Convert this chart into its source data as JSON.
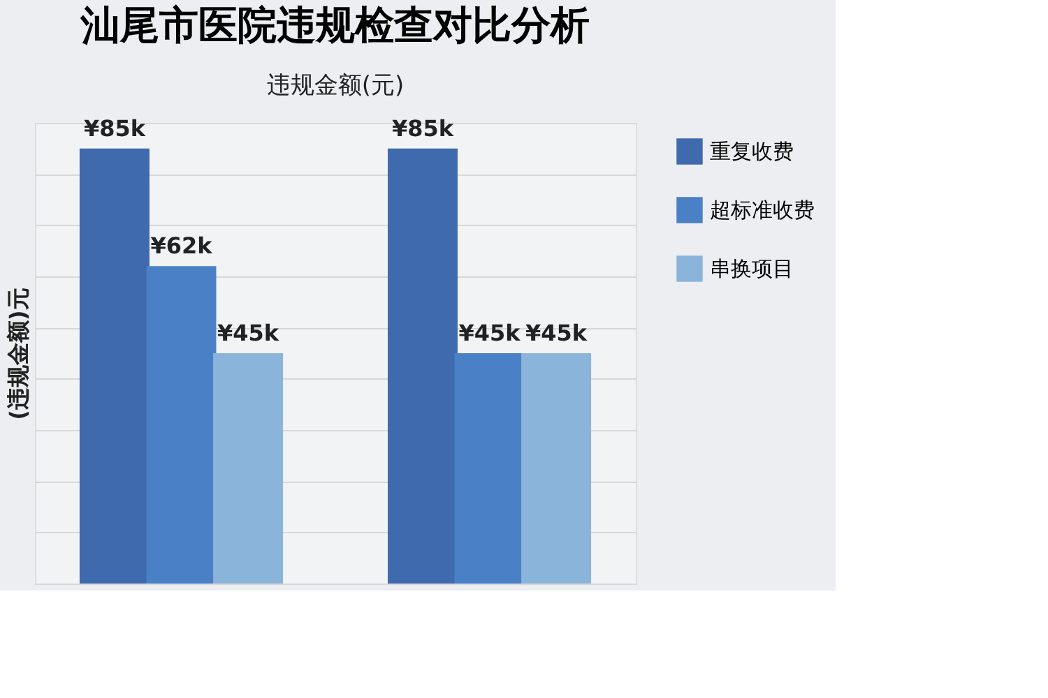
{
  "chart_data": {
    "type": "bar",
    "title": "汕尾市医院违规检查对比分析",
    "subtitle": "违规金额(元)",
    "ylabel": "(违规金额)元",
    "categories": [
      null,
      null
    ],
    "series": [
      {
        "name": "重复收费",
        "color": "#3f6aad",
        "values": [
          85000,
          85000
        ],
        "value_labels": [
          "¥85k",
          "¥85k"
        ]
      },
      {
        "name": "超标准收费",
        "color": "#4a80c6",
        "values": [
          62000,
          45000
        ],
        "value_labels": [
          "¥62k",
          "¥45k"
        ]
      },
      {
        "name": "串换项目",
        "color": "#8ab4da",
        "values": [
          45000,
          45000
        ],
        "value_labels": [
          "¥45k",
          "¥45k"
        ]
      }
    ],
    "grid": "y",
    "legend": "right",
    "tick_labels": false
  }
}
